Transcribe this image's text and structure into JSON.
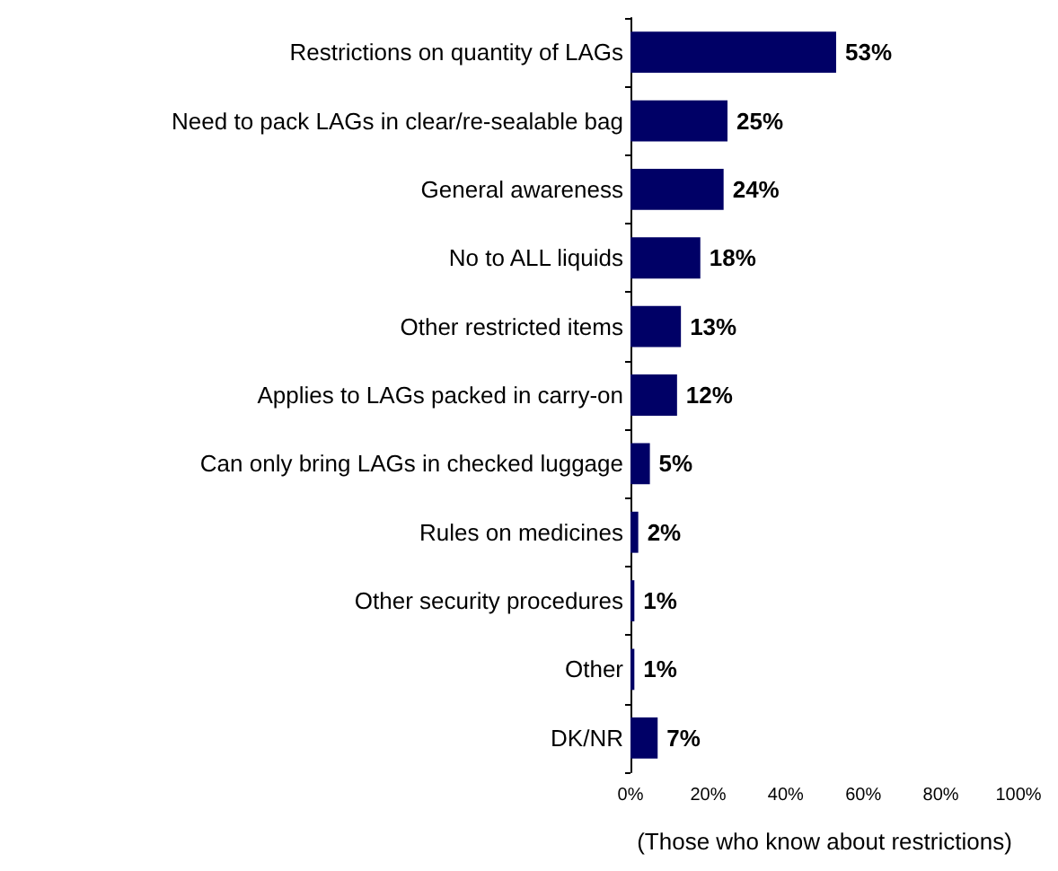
{
  "chart_data": {
    "type": "bar",
    "orientation": "horizontal",
    "xlabel": "(Those who know about restrictions)",
    "categories": [
      "Restrictions on quantity of LAGs",
      "Need to pack LAGs in clear/re-sealable bag",
      "General awareness",
      "No to ALL liquids",
      "Other restricted items",
      "Applies to LAGs packed in carry-on",
      "Can only bring LAGs in checked luggage",
      "Rules on medicines",
      "Other security procedures",
      "Other",
      "DK/NR"
    ],
    "values": [
      53,
      25,
      24,
      18,
      13,
      12,
      5,
      2,
      1,
      1,
      7
    ],
    "value_labels": [
      "53%",
      "25%",
      "24%",
      "18%",
      "13%",
      "12%",
      "5%",
      "2%",
      "1%",
      "1%",
      "7%"
    ],
    "color": "#000066",
    "xlim": [
      0,
      100
    ],
    "xticks": [
      {
        "value": 0,
        "label": "0%"
      },
      {
        "value": 20,
        "label": "20%"
      },
      {
        "value": 40,
        "label": "40%"
      },
      {
        "value": 60,
        "label": "60%"
      },
      {
        "value": 80,
        "label": "80%"
      },
      {
        "value": 100,
        "label": "100%"
      }
    ],
    "grid": false
  }
}
